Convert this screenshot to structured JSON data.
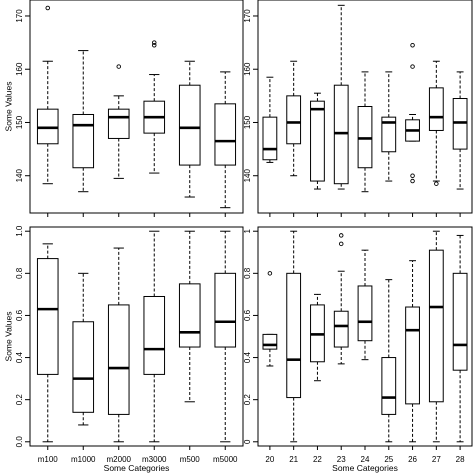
{
  "chart_data": [
    {
      "type": "boxplot",
      "panel": "top-left",
      "ylabel": "Some Values",
      "xlabel": "",
      "ylim": [
        133,
        173
      ],
      "yticks": [
        140,
        150,
        160,
        170
      ],
      "categories": [
        "m100",
        "m1000",
        "m2000",
        "m3000",
        "m500",
        "m5000"
      ],
      "show_x_tick_labels": false,
      "boxes": [
        {
          "category": "m100",
          "min": 138.5,
          "q1": 146,
          "median": 149,
          "q3": 152.5,
          "max": 161.5,
          "outliers": [
            171.5
          ]
        },
        {
          "category": "m1000",
          "min": 137,
          "q1": 141.5,
          "median": 149.5,
          "q3": 151.5,
          "max": 163.5,
          "outliers": []
        },
        {
          "category": "m2000",
          "min": 139.5,
          "q1": 147,
          "median": 151,
          "q3": 152.5,
          "max": 155,
          "outliers": [
            160.5
          ]
        },
        {
          "category": "m3000",
          "min": 140.5,
          "q1": 148,
          "median": 151,
          "q3": 154,
          "max": 159,
          "outliers": [
            164.5,
            165
          ]
        },
        {
          "category": "m500",
          "min": 136,
          "q1": 142,
          "median": 149,
          "q3": 157,
          "max": 161.5,
          "outliers": []
        },
        {
          "category": "m5000",
          "min": 134,
          "q1": 142,
          "median": 146.5,
          "q3": 153.5,
          "max": 159.5,
          "outliers": []
        }
      ]
    },
    {
      "type": "boxplot",
      "panel": "top-right",
      "ylabel": "",
      "xlabel": "",
      "ylim": [
        133,
        173
      ],
      "yticks": [
        140,
        150,
        160,
        170
      ],
      "categories": [
        "20",
        "21",
        "22",
        "23",
        "24",
        "25",
        "26",
        "27",
        "28"
      ],
      "show_x_tick_labels": false,
      "boxes": [
        {
          "category": "20",
          "min": 142.5,
          "q1": 143,
          "median": 145,
          "q3": 151,
          "max": 158.5,
          "outliers": []
        },
        {
          "category": "21",
          "min": 140,
          "q1": 146,
          "median": 150,
          "q3": 155,
          "max": 161.5,
          "outliers": []
        },
        {
          "category": "22",
          "min": 137.5,
          "q1": 139,
          "median": 152.5,
          "q3": 154,
          "max": 155.5,
          "outliers": []
        },
        {
          "category": "23",
          "min": 137.5,
          "q1": 138.5,
          "median": 148,
          "q3": 157,
          "max": 172,
          "outliers": []
        },
        {
          "category": "24",
          "min": 137,
          "q1": 141.5,
          "median": 147,
          "q3": 153,
          "max": 159.5,
          "outliers": []
        },
        {
          "category": "25",
          "min": 139,
          "q1": 144.5,
          "median": 150,
          "q3": 151,
          "max": 159.5,
          "outliers": []
        },
        {
          "category": "26",
          "min": 146.5,
          "q1": 146.5,
          "median": 148.5,
          "q3": 150.5,
          "max": 151.5,
          "outliers": [
            164.5,
            160.5,
            140,
            139
          ]
        },
        {
          "category": "27",
          "min": 139,
          "q1": 148.5,
          "median": 151,
          "q3": 156.5,
          "max": 161.5,
          "outliers": [
            138.5
          ]
        },
        {
          "category": "28",
          "min": 137.5,
          "q1": 145,
          "median": 150,
          "q3": 154.5,
          "max": 159.5,
          "outliers": []
        }
      ]
    },
    {
      "type": "boxplot",
      "panel": "bottom-left",
      "ylabel": "Some Values",
      "xlabel": "Some Categories",
      "ylim": [
        -0.02,
        1.02
      ],
      "yticks": [
        0.0,
        0.2,
        0.4,
        0.6,
        0.8,
        1.0
      ],
      "ytick_labels": [
        "0.0",
        "0.2",
        "0.4",
        "0.6",
        "0.8",
        "1.0"
      ],
      "categories": [
        "m100",
        "m1000",
        "m2000",
        "m3000",
        "m500",
        "m5000"
      ],
      "show_x_tick_labels": true,
      "boxes": [
        {
          "category": "m100",
          "min": 0.0,
          "q1": 0.32,
          "median": 0.63,
          "q3": 0.87,
          "max": 0.94,
          "outliers": []
        },
        {
          "category": "m1000",
          "min": 0.08,
          "q1": 0.14,
          "median": 0.3,
          "q3": 0.57,
          "max": 0.8,
          "outliers": []
        },
        {
          "category": "m2000",
          "min": 0.0,
          "q1": 0.13,
          "median": 0.35,
          "q3": 0.65,
          "max": 0.92,
          "outliers": []
        },
        {
          "category": "m3000",
          "min": 0.0,
          "q1": 0.32,
          "median": 0.44,
          "q3": 0.69,
          "max": 1.0,
          "outliers": []
        },
        {
          "category": "m500",
          "min": 0.19,
          "q1": 0.45,
          "median": 0.52,
          "q3": 0.75,
          "max": 1.0,
          "outliers": []
        },
        {
          "category": "m5000",
          "min": 0.0,
          "q1": 0.45,
          "median": 0.57,
          "q3": 0.8,
          "max": 1.0,
          "outliers": []
        }
      ]
    },
    {
      "type": "boxplot",
      "panel": "bottom-right",
      "ylabel": "",
      "xlabel": "Some Categories",
      "ylim": [
        -0.02,
        1.02
      ],
      "yticks": [
        0.0,
        0.2,
        0.4,
        0.6,
        0.8,
        1.0
      ],
      "categories": [
        "20",
        "21",
        "22",
        "23",
        "24",
        "25",
        "26",
        "27",
        "28"
      ],
      "show_x_tick_labels": true,
      "boxes": [
        {
          "category": "20",
          "min": 0.36,
          "q1": 0.44,
          "median": 0.46,
          "q3": 0.51,
          "max": 0.51,
          "outliers": [
            0.8
          ]
        },
        {
          "category": "21",
          "min": 0.0,
          "q1": 0.21,
          "median": 0.39,
          "q3": 0.8,
          "max": 1.0,
          "outliers": []
        },
        {
          "category": "22",
          "min": 0.29,
          "q1": 0.38,
          "median": 0.51,
          "q3": 0.65,
          "max": 0.7,
          "outliers": []
        },
        {
          "category": "23",
          "min": 0.37,
          "q1": 0.45,
          "median": 0.55,
          "q3": 0.62,
          "max": 0.81,
          "outliers": [
            0.98,
            0.94
          ]
        },
        {
          "category": "24",
          "min": 0.39,
          "q1": 0.48,
          "median": 0.57,
          "q3": 0.74,
          "max": 0.91,
          "outliers": []
        },
        {
          "category": "25",
          "min": 0.0,
          "q1": 0.13,
          "median": 0.21,
          "q3": 0.4,
          "max": 0.77,
          "outliers": []
        },
        {
          "category": "26",
          "min": 0.0,
          "q1": 0.18,
          "median": 0.53,
          "q3": 0.64,
          "max": 0.86,
          "outliers": []
        },
        {
          "category": "27",
          "min": 0.0,
          "q1": 0.19,
          "median": 0.64,
          "q3": 0.91,
          "max": 1.0,
          "outliers": []
        },
        {
          "category": "28",
          "min": 0.0,
          "q1": 0.34,
          "median": 0.46,
          "q3": 0.8,
          "max": 0.98,
          "outliers": []
        }
      ]
    }
  ]
}
